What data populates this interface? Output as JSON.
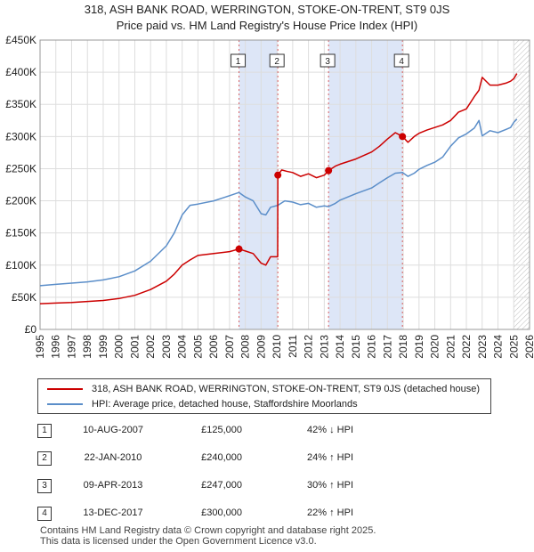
{
  "chart_data": {
    "type": "line",
    "title": "318, ASH BANK ROAD, WERRINGTON, STOKE-ON-TRENT, ST9 0JS",
    "subtitle": "Price paid vs. HM Land Registry's House Price Index (HPI)",
    "xlim": [
      1995,
      2026
    ],
    "ylim": [
      0,
      450000
    ],
    "x_ticks": [
      1995,
      1996,
      1997,
      1998,
      1999,
      2000,
      2001,
      2002,
      2003,
      2004,
      2005,
      2006,
      2007,
      2008,
      2009,
      2010,
      2011,
      2012,
      2013,
      2014,
      2015,
      2016,
      2017,
      2018,
      2019,
      2020,
      2021,
      2022,
      2023,
      2024,
      2025,
      2026
    ],
    "y_ticks": [
      {
        "value": 0,
        "label": "£0"
      },
      {
        "value": 50000,
        "label": "£50K"
      },
      {
        "value": 100000,
        "label": "£100K"
      },
      {
        "value": 150000,
        "label": "£150K"
      },
      {
        "value": 200000,
        "label": "£200K"
      },
      {
        "value": 250000,
        "label": "£250K"
      },
      {
        "value": 300000,
        "label": "£300K"
      },
      {
        "value": 350000,
        "label": "£350K"
      },
      {
        "value": 400000,
        "label": "£400K"
      },
      {
        "value": 450000,
        "label": "£450K"
      }
    ],
    "grid": true,
    "shaded_periods": [
      [
        2007.6,
        2010.06
      ],
      [
        2013.27,
        2017.95
      ]
    ],
    "hatched_from": 2025.0,
    "series": [
      {
        "name": "318, ASH BANK ROAD, WERRINGTON, STOKE-ON-TRENT, ST9 0JS (detached house)",
        "color": "#cc0000",
        "x": [
          1995.0,
          1996.0,
          1997.0,
          1998.0,
          1999.0,
          2000.0,
          2001.0,
          2002.0,
          2003.0,
          2003.5,
          2004.0,
          2004.5,
          2005.0,
          2006.0,
          2007.0,
          2007.6,
          2008.0,
          2008.5,
          2009.0,
          2009.3,
          2009.6,
          2010.05,
          2010.06,
          2010.3,
          2010.6,
          2011.0,
          2011.5,
          2012.0,
          2012.5,
          2013.0,
          2013.27,
          2013.7,
          2014.0,
          2015.0,
          2016.0,
          2016.5,
          2017.0,
          2017.5,
          2017.95,
          2018.3,
          2018.7,
          2019.0,
          2019.5,
          2020.0,
          2020.5,
          2021.0,
          2021.5,
          2022.0,
          2022.5,
          2022.8,
          2023.0,
          2023.5,
          2024.0,
          2024.5,
          2024.8,
          2025.0,
          2025.2
        ],
        "y": [
          40000,
          41000,
          42000,
          43500,
          45000,
          48000,
          53000,
          62000,
          75000,
          86000,
          100000,
          108000,
          115000,
          118000,
          121000,
          125000,
          122000,
          118000,
          103000,
          100000,
          113000,
          113000,
          240000,
          248000,
          246000,
          244000,
          238000,
          242000,
          236000,
          240000,
          247000,
          254000,
          257000,
          265000,
          276000,
          285000,
          296000,
          306000,
          300000,
          291000,
          300000,
          305000,
          310000,
          314000,
          318000,
          325000,
          338000,
          343000,
          362000,
          372000,
          392000,
          380000,
          380000,
          383000,
          386000,
          390000,
          398000
        ]
      },
      {
        "name": "HPI: Average price, detached house, Staffordshire Moorlands",
        "color": "#5b8ec9",
        "x": [
          1995.0,
          1996.0,
          1997.0,
          1998.0,
          1999.0,
          2000.0,
          2001.0,
          2002.0,
          2003.0,
          2003.5,
          2004.0,
          2004.5,
          2005.0,
          2006.0,
          2007.0,
          2007.6,
          2008.0,
          2008.5,
          2009.0,
          2009.3,
          2009.6,
          2010.06,
          2010.5,
          2011.0,
          2011.5,
          2012.0,
          2012.5,
          2013.0,
          2013.27,
          2013.7,
          2014.0,
          2015.0,
          2016.0,
          2016.5,
          2017.0,
          2017.5,
          2017.95,
          2018.3,
          2018.7,
          2019.0,
          2019.5,
          2020.0,
          2020.5,
          2021.0,
          2021.5,
          2022.0,
          2022.5,
          2022.8,
          2023.0,
          2023.5,
          2024.0,
          2024.5,
          2024.8,
          2025.0,
          2025.2
        ],
        "y": [
          68000,
          70000,
          72000,
          74000,
          77000,
          82000,
          91000,
          106000,
          130000,
          150000,
          178000,
          193000,
          195000,
          200000,
          208000,
          213000,
          206000,
          200000,
          180000,
          178000,
          190000,
          193000,
          200000,
          198000,
          194000,
          196000,
          190000,
          192000,
          191000,
          196000,
          201000,
          211000,
          220000,
          228000,
          236000,
          243000,
          244000,
          238000,
          243000,
          249000,
          255000,
          260000,
          268000,
          285000,
          298000,
          304000,
          313000,
          325000,
          301000,
          309000,
          306000,
          311000,
          314000,
          322000,
          327000
        ]
      }
    ],
    "sale_markers": [
      {
        "label": "1",
        "x": 2007.6,
        "y": 125000
      },
      {
        "label": "2",
        "x": 2010.06,
        "y": 240000
      },
      {
        "label": "3",
        "x": 2013.27,
        "y": 247000
      },
      {
        "label": "4",
        "x": 2017.95,
        "y": 300000
      }
    ],
    "colors": {
      "sale_line": "#cc0000",
      "hpi_line": "#5b8ec9",
      "shade": "#dde6f7",
      "grid": "#dddddd"
    }
  },
  "legend": {
    "sale_label": "318, ASH BANK ROAD, WERRINGTON, STOKE-ON-TRENT, ST9 0JS (detached house)",
    "hpi_label": "HPI: Average price, detached house, Staffordshire Moorlands"
  },
  "sales": [
    {
      "num": "1",
      "date": "10-AUG-2007",
      "price": "£125,000",
      "hpi": "42% ↓ HPI"
    },
    {
      "num": "2",
      "date": "22-JAN-2010",
      "price": "£240,000",
      "hpi": "24% ↑ HPI"
    },
    {
      "num": "3",
      "date": "09-APR-2013",
      "price": "£247,000",
      "hpi": "30% ↑ HPI"
    },
    {
      "num": "4",
      "date": "13-DEC-2017",
      "price": "£300,000",
      "hpi": "22% ↑ HPI"
    }
  ],
  "footer": {
    "line1": "Contains HM Land Registry data © Crown copyright and database right 2025.",
    "line2": "This data is licensed under the Open Government Licence v3.0."
  }
}
